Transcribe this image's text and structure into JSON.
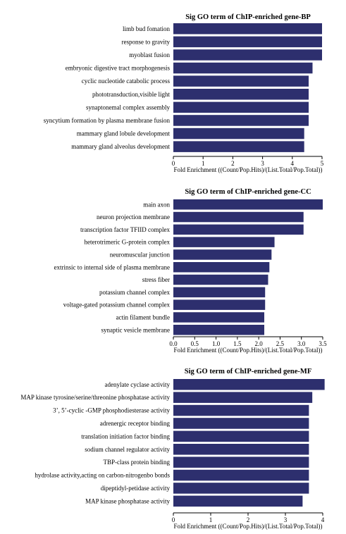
{
  "colors": {
    "bar": "#2d2f6e",
    "axis": "#000000",
    "background": "#ffffff"
  },
  "chart_data": [
    {
      "type": "bar",
      "orientation": "horizontal",
      "title": "Sig GO term of ChIP-enriched gene-BP",
      "xlabel": "Fold Enrichment ((Count/Pop.Hits)/(List.Total/Pop.Total))",
      "categories": [
        "limb bud fomation",
        "response to gravity",
        "myoblast fusion",
        "embryonic digestive tract morphogenesis",
        "cyclic nucleotide catabolic process",
        "phototransduction,visible light",
        "synaptonemal complex assembly",
        "syncytium formation by plasma membrane fusion",
        "mammary gland lobule development",
        "mammary gland alveolus development"
      ],
      "values": [
        5.0,
        5.0,
        5.0,
        4.68,
        4.55,
        4.55,
        4.55,
        4.55,
        4.4,
        4.4
      ],
      "xlim": [
        0,
        5
      ],
      "ticks": [
        0,
        1,
        2,
        3,
        4,
        5
      ],
      "tick_labels": [
        "0",
        "1",
        "2",
        "3",
        "4",
        "5"
      ],
      "grid": false
    },
    {
      "type": "bar",
      "orientation": "horizontal",
      "title": "Sig GO term of ChIP-enriched gene-CC",
      "xlabel": "Fold Enrichment ((Count/Pop.Hits)/(List.Total/Pop.Total))",
      "categories": [
        "main axon",
        "neuron projection membrane",
        "transcription factor TFIID complex",
        "heterotrimeric G-protein complex",
        "neuromuscular junction",
        "extrinsic to internal side of plasma membrane",
        "stress fiber",
        "potassium channel complex",
        "voltage-gated potassium channel complex",
        "actin filament bundle",
        "synaptic vesicle membrane"
      ],
      "values": [
        3.5,
        3.05,
        3.05,
        2.37,
        2.3,
        2.25,
        2.22,
        2.15,
        2.15,
        2.13,
        2.13
      ],
      "xlim": [
        0,
        3.5
      ],
      "ticks": [
        0,
        0.5,
        1.0,
        1.5,
        2.0,
        2.5,
        3.0,
        3.5
      ],
      "tick_labels": [
        "0.0",
        "0.5",
        "1.0",
        "1.5",
        "2.0",
        "2.5",
        "3.0",
        "3.5"
      ],
      "grid": false
    },
    {
      "type": "bar",
      "orientation": "horizontal",
      "title": "Sig GO term of ChIP-enriched gene-MF",
      "xlabel": "Fold Enrichment ((Count/Pop.Hits)/(List.Total/Pop.Total))",
      "categories": [
        "adenylate cyclase activity",
        "MAP kinase tyrosine/serine/threonine phosphatase activity",
        "3’, 5’-cyclic -GMP phosphodiesterase activity",
        "adrenergic receptor binding",
        "translation initiation factor binding",
        "sodium channel regulator activity",
        "TBP-class protein binding",
        "hydrolase activity,acting on carbon-nitrogenbo bonds",
        "dipeptidyl-petidase activity",
        "MAP kinase phosphatase activity"
      ],
      "values": [
        4.05,
        3.72,
        3.63,
        3.63,
        3.63,
        3.63,
        3.63,
        3.63,
        3.63,
        3.46
      ],
      "xlim": [
        0,
        4
      ],
      "ticks": [
        0,
        1,
        2,
        3,
        4
      ],
      "tick_labels": [
        "0",
        "1",
        "2",
        "3",
        "4"
      ],
      "grid": false
    }
  ]
}
